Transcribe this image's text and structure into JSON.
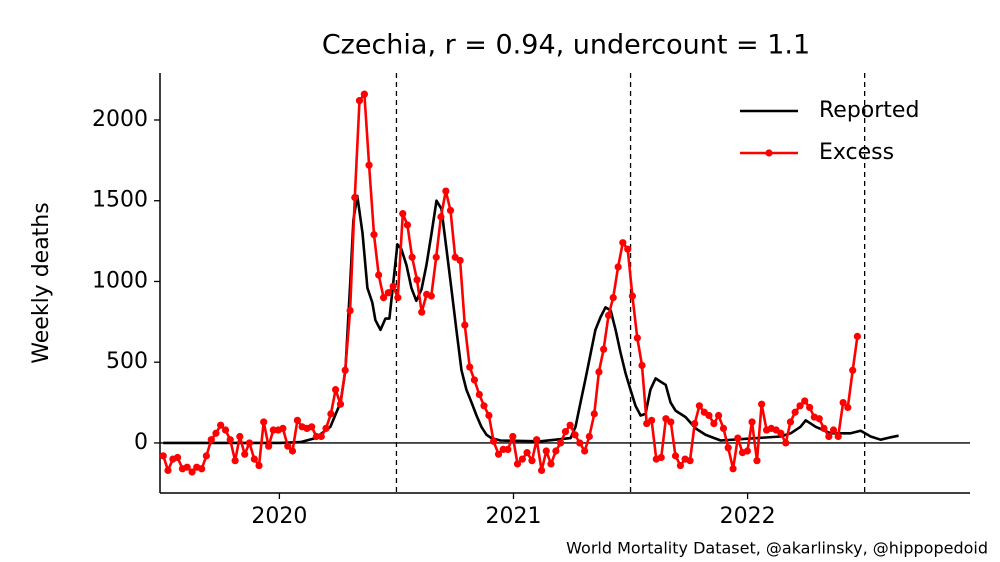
{
  "chart_data": {
    "type": "line",
    "title": "Czechia, r = 0.94, undercount = 1.1",
    "y_label": "Weekly deaths",
    "note": "World Mortality Dataset, @akarlinsky, @hippopedoid",
    "xlim": [
      2019.49,
      2022.95
    ],
    "xticks": [
      2020,
      2021,
      2022
    ],
    "ylim": [
      -310,
      2291
    ],
    "yticks": [
      0,
      500,
      1000,
      1500,
      2000
    ],
    "vlines": [
      2020.5,
      2021.5,
      2022.5
    ],
    "hline": 0,
    "legend": "upper right",
    "series": [
      {
        "name": "Reported",
        "color": "#000000",
        "markers": false,
        "x": [
          2019.504,
          2019.662,
          2019.833,
          2020.004,
          2020.09,
          2020.154,
          2020.218,
          2020.261,
          2020.282,
          2020.303,
          2020.316,
          2020.333,
          2020.355,
          2020.376,
          2020.397,
          2020.41,
          2020.432,
          2020.453,
          2020.47,
          2020.487,
          2020.504,
          2020.521,
          2020.543,
          2020.564,
          2020.585,
          2020.607,
          2020.628,
          2020.65,
          2020.671,
          2020.692,
          2020.714,
          2020.735,
          2020.756,
          2020.778,
          2020.799,
          2020.821,
          2020.842,
          2020.863,
          2020.885,
          2020.906,
          2020.944,
          2021.115,
          2021.244,
          2021.265,
          2021.286,
          2021.308,
          2021.329,
          2021.35,
          2021.372,
          2021.393,
          2021.415,
          2021.436,
          2021.457,
          2021.479,
          2021.5,
          2021.521,
          2021.543,
          2021.564,
          2021.585,
          2021.607,
          2021.628,
          2021.65,
          2021.671,
          2021.692,
          2021.735,
          2021.778,
          2021.821,
          2021.885,
          2022.141,
          2022.184,
          2022.226,
          2022.248,
          2022.291,
          2022.355,
          2022.44,
          2022.483,
          2022.526,
          2022.568,
          2022.611,
          2022.645
        ],
        "values": [
          0,
          0,
          0,
          0,
          5,
          30,
          100,
          250,
          450,
          1000,
          1380,
          1530,
          1300,
          960,
          870,
          760,
          700,
          770,
          770,
          1000,
          1230,
          1200,
          1100,
          960,
          880,
          950,
          1100,
          1300,
          1500,
          1450,
          1200,
          950,
          700,
          450,
          330,
          250,
          170,
          100,
          50,
          30,
          15,
          10,
          30,
          100,
          250,
          400,
          550,
          700,
          780,
          840,
          820,
          700,
          560,
          430,
          330,
          230,
          170,
          180,
          330,
          400,
          380,
          360,
          250,
          200,
          160,
          90,
          50,
          15,
          40,
          60,
          100,
          140,
          100,
          60,
          60,
          75,
          40,
          20,
          35,
          45
        ]
      },
      {
        "name": "Excess",
        "color": "#ff0000",
        "markers": true,
        "x": [
          2019.504,
          2019.524,
          2019.545,
          2019.565,
          2019.586,
          2019.606,
          2019.627,
          2019.647,
          2019.668,
          2019.688,
          2019.709,
          2019.729,
          2019.749,
          2019.77,
          2019.79,
          2019.811,
          2019.831,
          2019.852,
          2019.872,
          2019.893,
          2019.913,
          2019.933,
          2019.954,
          2019.974,
          2019.995,
          2020.015,
          2020.036,
          2020.056,
          2020.077,
          2020.097,
          2020.118,
          2020.138,
          2020.158,
          2020.179,
          2020.199,
          2020.22,
          2020.24,
          2020.261,
          2020.281,
          2020.302,
          2020.322,
          2020.342,
          2020.363,
          2020.383,
          2020.404,
          2020.424,
          2020.445,
          2020.465,
          2020.486,
          2020.506,
          2020.527,
          2020.547,
          2020.567,
          2020.588,
          2020.608,
          2020.629,
          2020.649,
          2020.67,
          2020.69,
          2020.711,
          2020.731,
          2020.751,
          2020.772,
          2020.792,
          2020.813,
          2020.833,
          2020.854,
          2020.874,
          2020.895,
          2020.915,
          2020.936,
          2020.956,
          2020.976,
          2020.997,
          2021.017,
          2021.038,
          2021.058,
          2021.079,
          2021.099,
          2021.12,
          2021.14,
          2021.16,
          2021.181,
          2021.201,
          2021.222,
          2021.242,
          2021.263,
          2021.283,
          2021.304,
          2021.324,
          2021.345,
          2021.365,
          2021.385,
          2021.406,
          2021.426,
          2021.447,
          2021.467,
          2021.488,
          2021.508,
          2021.529,
          2021.549,
          2021.569,
          2021.59,
          2021.61,
          2021.631,
          2021.651,
          2021.672,
          2021.692,
          2021.713,
          2021.733,
          2021.754,
          2021.774,
          2021.794,
          2021.815,
          2021.835,
          2021.856,
          2021.876,
          2021.897,
          2021.917,
          2021.938,
          2021.958,
          2021.978,
          2021.999,
          2022.019,
          2022.04,
          2022.06,
          2022.081,
          2022.101,
          2022.122,
          2022.142,
          2022.163,
          2022.183,
          2022.203,
          2022.224,
          2022.244,
          2022.265,
          2022.285,
          2022.306,
          2022.326,
          2022.347,
          2022.367,
          2022.387,
          2022.408,
          2022.428,
          2022.449,
          2022.469
        ],
        "values": [
          -80,
          -170,
          -100,
          -90,
          -160,
          -150,
          -180,
          -150,
          -160,
          -80,
          20,
          60,
          110,
          80,
          20,
          -110,
          40,
          -70,
          0,
          -100,
          -140,
          130,
          -20,
          80,
          80,
          90,
          -20,
          -50,
          140,
          100,
          90,
          100,
          40,
          40,
          90,
          180,
          330,
          240,
          450,
          820,
          1520,
          2120,
          2160,
          1720,
          1290,
          1040,
          900,
          930,
          970,
          900,
          1420,
          1350,
          1150,
          1010,
          810,
          920,
          910,
          1150,
          1400,
          1560,
          1440,
          1150,
          1130,
          730,
          470,
          390,
          300,
          230,
          170,
          10,
          -70,
          -40,
          -40,
          40,
          -130,
          -100,
          -60,
          -110,
          20,
          -170,
          -50,
          -130,
          -50,
          0,
          70,
          110,
          50,
          0,
          -50,
          40,
          180,
          440,
          580,
          790,
          900,
          1090,
          1240,
          1200,
          910,
          650,
          480,
          120,
          140,
          -100,
          -90,
          150,
          130,
          -80,
          -140,
          -100,
          -110,
          120,
          230,
          190,
          170,
          120,
          170,
          90,
          -30,
          -160,
          30,
          -60,
          -50,
          130,
          -110,
          240,
          80,
          90,
          80,
          60,
          0,
          130,
          190,
          230,
          260,
          220,
          160,
          150,
          90,
          40,
          80,
          40,
          250,
          220,
          450,
          660
        ]
      }
    ]
  }
}
